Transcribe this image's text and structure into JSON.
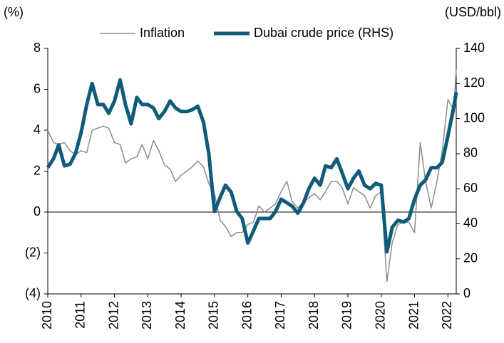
{
  "chart_data": {
    "type": "line",
    "y_label": "(%)",
    "y2_label": "(USD/bbl)",
    "x": [
      2010,
      2010.17,
      2010.33,
      2010.5,
      2010.67,
      2010.83,
      2011,
      2011.17,
      2011.33,
      2011.5,
      2011.67,
      2011.83,
      2012,
      2012.17,
      2012.33,
      2012.5,
      2012.67,
      2012.83,
      2013,
      2013.17,
      2013.33,
      2013.5,
      2013.67,
      2013.83,
      2014,
      2014.17,
      2014.33,
      2014.5,
      2014.67,
      2014.83,
      2015,
      2015.17,
      2015.33,
      2015.5,
      2015.67,
      2015.83,
      2016,
      2016.17,
      2016.33,
      2016.5,
      2016.67,
      2016.83,
      2017,
      2017.17,
      2017.33,
      2017.5,
      2017.67,
      2017.83,
      2018,
      2018.17,
      2018.33,
      2018.5,
      2018.67,
      2018.83,
      2019,
      2019.17,
      2019.33,
      2019.5,
      2019.67,
      2019.83,
      2020,
      2020.17,
      2020.33,
      2020.5,
      2020.67,
      2020.83,
      2021,
      2021.17,
      2021.33,
      2021.5,
      2021.67,
      2021.83,
      2022,
      2022.17,
      2022.25
    ],
    "xlim": [
      2010,
      2022.25
    ],
    "xticks": [
      2010,
      2011,
      2012,
      2013,
      2014,
      2015,
      2016,
      2017,
      2018,
      2019,
      2020,
      2021,
      2022
    ],
    "ylim": [
      -4,
      8
    ],
    "yticks": [
      {
        "value": -4,
        "label": "(4)"
      },
      {
        "value": -2,
        "label": "(2)"
      },
      0,
      2,
      4,
      6,
      8
    ],
    "y2lim": [
      0,
      140
    ],
    "y2ticks": [
      0,
      20,
      40,
      60,
      80,
      100,
      120,
      140
    ],
    "series": [
      {
        "name": "Inflation",
        "color": "#8c8c8c",
        "values": [
          4.0,
          3.4,
          3.3,
          3.4,
          3.0,
          2.8,
          3.0,
          2.9,
          4.0,
          4.1,
          4.2,
          4.1,
          3.4,
          3.3,
          2.4,
          2.6,
          2.7,
          3.3,
          2.6,
          3.5,
          3.0,
          2.3,
          2.1,
          1.5,
          1.8,
          2.0,
          2.2,
          2.5,
          2.2,
          1.4,
          0.9,
          -0.4,
          -0.7,
          -1.2,
          -1.0,
          -1.0,
          -0.6,
          -0.5,
          0.3,
          0.0,
          0.2,
          0.4,
          1.0,
          1.5,
          0.5,
          0.2,
          0.5,
          0.7,
          0.9,
          0.6,
          1.0,
          1.5,
          1.5,
          1.2,
          0.4,
          1.2,
          1.0,
          0.8,
          0.2,
          0.8,
          1.0,
          -3.4,
          -1.5,
          -0.6,
          -0.5,
          -0.5,
          -1.0,
          3.4,
          1.5,
          0.2,
          1.5,
          3.0,
          5.5,
          5.0,
          7.0
        ]
      },
      {
        "name": "Dubai crude price (RHS)",
        "color": "#0f5b78",
        "axis": "y2",
        "values": [
          72,
          77,
          85,
          73,
          74,
          80,
          92,
          108,
          120,
          108,
          108,
          103,
          110,
          122,
          108,
          97,
          112,
          108,
          108,
          106,
          100,
          104,
          110,
          106,
          104,
          104,
          105,
          107,
          98,
          80,
          47,
          55,
          62,
          58,
          47,
          43,
          29,
          36,
          43,
          43,
          43,
          47,
          54,
          52,
          50,
          46,
          52,
          60,
          66,
          62,
          73,
          72,
          77,
          69,
          60,
          66,
          70,
          62,
          60,
          63,
          62,
          24,
          38,
          42,
          41,
          43,
          54,
          62,
          65,
          72,
          72,
          75,
          90,
          106,
          115
        ]
      }
    ]
  }
}
